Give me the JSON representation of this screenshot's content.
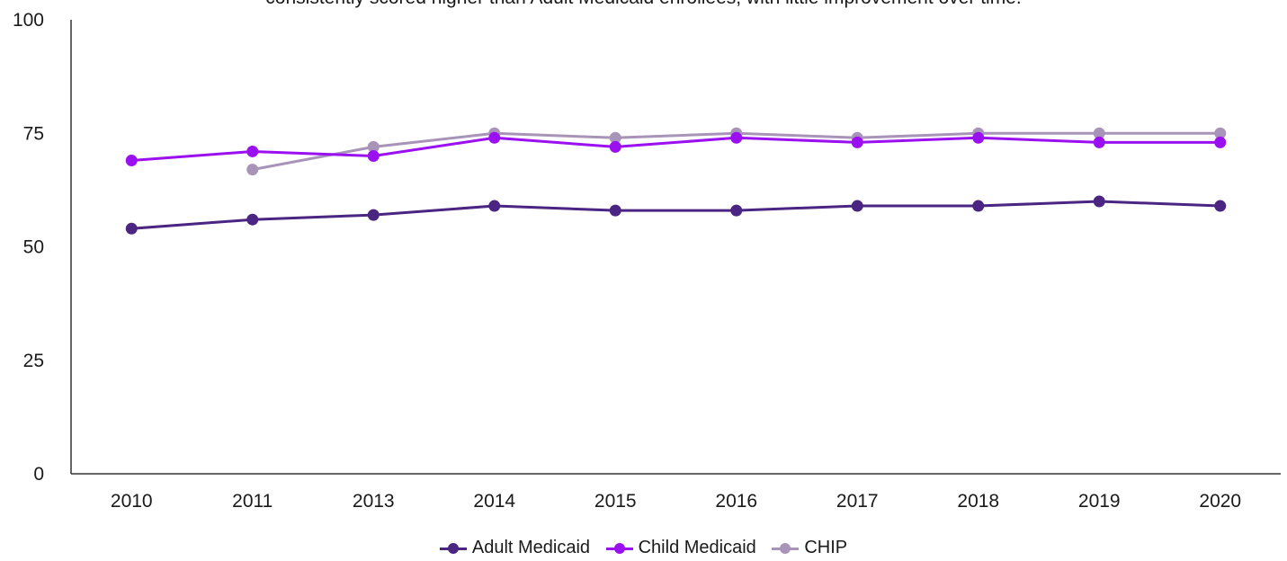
{
  "chart_data": {
    "type": "line",
    "title": "consistently scored higher than Adult Medicaid enrollees, with little improvement over time.",
    "categories": [
      "2010",
      "2011",
      "2013",
      "2014",
      "2015",
      "2016",
      "2017",
      "2018",
      "2019",
      "2020"
    ],
    "ylim": [
      0,
      100
    ],
    "yticks": [
      "0",
      "25",
      "50",
      "75",
      "100"
    ],
    "grid": false,
    "legend_position": "bottom",
    "series": [
      {
        "name": "Adult Medicaid",
        "color": "#4b2582",
        "values": [
          54,
          56,
          57,
          59,
          58,
          58,
          59,
          59,
          60,
          59
        ]
      },
      {
        "name": "Child Medicaid",
        "color": "#9b10f0",
        "values": [
          69,
          71,
          70,
          74,
          72,
          74,
          73,
          74,
          73,
          73
        ]
      },
      {
        "name": "CHIP",
        "color": "#a894b8",
        "values": [
          null,
          67,
          72,
          75,
          74,
          75,
          74,
          75,
          75,
          75
        ]
      }
    ]
  }
}
